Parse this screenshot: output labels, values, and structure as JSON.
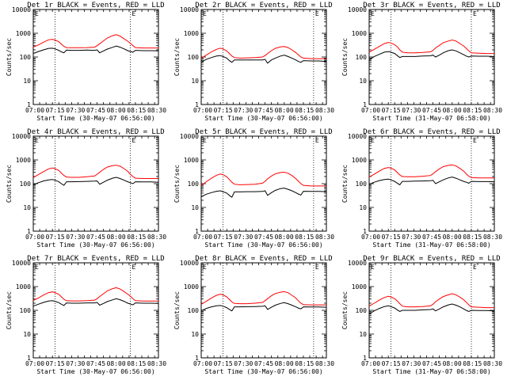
{
  "figure": {
    "ylabel": "Counts/sec",
    "y_ticks": [
      "1",
      "10",
      "100",
      "1000",
      "10000"
    ],
    "x_ticks": [
      "07:00",
      "07:15",
      "07:30",
      "07:45",
      "08:00",
      "08:15",
      "08:30"
    ],
    "corner_mark": "E",
    "colors": {
      "events": "#000000",
      "lld": "#ff0000",
      "axes": "#000000",
      "background": "#ffffff"
    }
  },
  "chart_data": [
    {
      "type": "line",
      "title": "Det 1r BLACK = Events, RED = LLD",
      "xlabel": "Start Time (30-May-07 06:56:00)",
      "ylabel": "Counts/sec",
      "xlim_minutes": [
        0,
        98
      ],
      "ylim": [
        1,
        10000
      ],
      "yscale": "log",
      "vlines_minutes": [
        17,
        76
      ],
      "x_minutes": [
        0,
        4,
        8,
        12,
        15,
        17,
        20,
        22,
        24,
        26,
        30,
        36,
        42,
        48,
        50,
        52,
        55,
        58,
        62,
        65,
        68,
        71,
        74,
        76,
        78,
        80,
        86,
        92,
        98
      ],
      "series": [
        {
          "name": "Events",
          "values": [
            140,
            170,
            200,
            230,
            235,
            220,
            190,
            165,
            150,
            195,
            190,
            190,
            195,
            190,
            200,
            150,
            180,
            215,
            255,
            290,
            260,
            220,
            185,
            170,
            160,
            190,
            185,
            185,
            180
          ]
        },
        {
          "name": "LLD",
          "values": [
            260,
            320,
            420,
            530,
            560,
            520,
            440,
            350,
            280,
            250,
            245,
            245,
            250,
            260,
            300,
            360,
            480,
            630,
            790,
            870,
            760,
            590,
            460,
            380,
            300,
            250,
            240,
            240,
            240
          ]
        }
      ]
    },
    {
      "type": "line",
      "title": "Det 2r BLACK = Events, RED = LLD",
      "xlabel": "Start Time (30-May-07 06:56:00)",
      "ylabel": "Counts/sec",
      "xlim_minutes": [
        0,
        98
      ],
      "ylim": [
        1,
        10000
      ],
      "yscale": "log",
      "vlines_minutes": [
        17,
        88
      ],
      "x_minutes": [
        0,
        4,
        8,
        12,
        15,
        17,
        20,
        22,
        24,
        26,
        30,
        36,
        42,
        48,
        50,
        52,
        55,
        58,
        62,
        65,
        68,
        71,
        74,
        76,
        78,
        80,
        86,
        92,
        98
      ],
      "series": [
        {
          "name": "Events",
          "values": [
            60,
            80,
            95,
            110,
            115,
            105,
            90,
            70,
            60,
            75,
            75,
            75,
            75,
            75,
            80,
            55,
            75,
            90,
            110,
            120,
            105,
            90,
            75,
            65,
            60,
            70,
            68,
            68,
            65
          ]
        },
        {
          "name": "LLD",
          "values": [
            90,
            120,
            165,
            210,
            235,
            220,
            180,
            140,
            110,
            95,
            90,
            92,
            95,
            100,
            115,
            140,
            185,
            230,
            265,
            275,
            250,
            200,
            155,
            125,
            100,
            90,
            85,
            85,
            85
          ]
        }
      ]
    },
    {
      "type": "line",
      "title": "Det 3r BLACK = Events, RED = LLD",
      "xlabel": "Start Time (31-May-07 06:58:00)",
      "ylabel": "Counts/sec",
      "xlim_minutes": [
        0,
        98
      ],
      "ylim": [
        1,
        10000
      ],
      "yscale": "log",
      "vlines_minutes": [
        17,
        80
      ],
      "x_minutes": [
        0,
        4,
        8,
        12,
        15,
        17,
        20,
        22,
        24,
        26,
        30,
        36,
        42,
        48,
        50,
        52,
        55,
        58,
        62,
        65,
        68,
        71,
        74,
        76,
        78,
        80,
        86,
        92,
        98
      ],
      "series": [
        {
          "name": "Events",
          "values": [
            75,
            105,
            130,
            160,
            170,
            160,
            140,
            115,
            95,
            105,
            105,
            105,
            110,
            112,
            120,
            100,
            120,
            150,
            185,
            200,
            180,
            150,
            125,
            110,
            100,
            110,
            108,
            108,
            105
          ]
        },
        {
          "name": "LLD",
          "values": [
            160,
            210,
            280,
            370,
            410,
            390,
            330,
            270,
            200,
            160,
            150,
            150,
            155,
            165,
            190,
            240,
            310,
            400,
            470,
            520,
            470,
            370,
            290,
            230,
            180,
            150,
            145,
            140,
            140
          ]
        }
      ]
    },
    {
      "type": "line",
      "title": "Det 4r BLACK = Events, RED = LLD",
      "xlabel": "Start Time (30-May-07 06:56:00)",
      "ylabel": "Counts/sec",
      "xlim_minutes": [
        0,
        98
      ],
      "ylim": [
        1,
        10000
      ],
      "yscale": "log",
      "vlines_minutes": [
        17,
        76
      ],
      "x_minutes": [
        0,
        4,
        8,
        12,
        15,
        17,
        20,
        22,
        24,
        26,
        30,
        36,
        42,
        48,
        50,
        52,
        55,
        58,
        62,
        65,
        68,
        71,
        74,
        76,
        78,
        80,
        86,
        92,
        98
      ],
      "series": [
        {
          "name": "Events",
          "values": [
            90,
            110,
            130,
            145,
            150,
            140,
            120,
            100,
            85,
            120,
            120,
            122,
            125,
            128,
            130,
            95,
            115,
            140,
            170,
            185,
            165,
            140,
            120,
            110,
            100,
            120,
            118,
            118,
            115
          ]
        },
        {
          "name": "LLD",
          "values": [
            180,
            240,
            320,
            420,
            460,
            430,
            360,
            280,
            220,
            190,
            185,
            185,
            195,
            210,
            250,
            300,
            400,
            500,
            570,
            600,
            540,
            430,
            330,
            250,
            200,
            170,
            165,
            165,
            165
          ]
        }
      ]
    },
    {
      "type": "line",
      "title": "Det 5r BLACK = Events, RED = LLD",
      "xlabel": "Start Time (30-May-07 06:56:00)",
      "ylabel": "Counts/sec",
      "xlim_minutes": [
        0,
        98
      ],
      "ylim": [
        1,
        10000
      ],
      "yscale": "log",
      "vlines_minutes": [
        17,
        88
      ],
      "x_minutes": [
        0,
        4,
        8,
        12,
        15,
        17,
        20,
        22,
        24,
        26,
        30,
        36,
        42,
        48,
        50,
        52,
        55,
        58,
        62,
        65,
        68,
        71,
        74,
        76,
        78,
        80,
        86,
        92,
        98
      ],
      "series": [
        {
          "name": "Events",
          "values": [
            28,
            36,
            42,
            48,
            50,
            46,
            40,
            32,
            27,
            45,
            45,
            46,
            46,
            47,
            50,
            32,
            42,
            52,
            62,
            65,
            58,
            50,
            42,
            37,
            33,
            48,
            47,
            47,
            46
          ]
        },
        {
          "name": "LLD",
          "values": [
            85,
            120,
            170,
            225,
            255,
            240,
            195,
            150,
            115,
            95,
            90,
            92,
            95,
            105,
            125,
            160,
            210,
            260,
            295,
            305,
            275,
            220,
            165,
            130,
            100,
            85,
            80,
            80,
            80
          ]
        }
      ]
    },
    {
      "type": "line",
      "title": "Det 6r BLACK = Events, RED = LLD",
      "xlabel": "Start Time (31-May-07 06:58:00)",
      "ylabel": "Counts/sec",
      "xlim_minutes": [
        0,
        98
      ],
      "ylim": [
        1,
        10000
      ],
      "yscale": "log",
      "vlines_minutes": [
        17,
        80
      ],
      "x_minutes": [
        0,
        4,
        8,
        12,
        15,
        17,
        20,
        22,
        24,
        26,
        30,
        36,
        42,
        48,
        50,
        52,
        55,
        58,
        62,
        65,
        68,
        71,
        74,
        76,
        78,
        80,
        86,
        92,
        98
      ],
      "series": [
        {
          "name": "Events",
          "values": [
            95,
            115,
            135,
            150,
            155,
            145,
            125,
            105,
            90,
            125,
            125,
            128,
            130,
            133,
            138,
            100,
            120,
            145,
            175,
            190,
            170,
            145,
            125,
            115,
            105,
            125,
            122,
            122,
            120
          ]
        },
        {
          "name": "LLD",
          "values": [
            190,
            250,
            340,
            440,
            480,
            450,
            380,
            295,
            230,
            200,
            195,
            195,
            205,
            220,
            260,
            320,
            420,
            520,
            590,
            620,
            560,
            440,
            340,
            260,
            205,
            180,
            175,
            175,
            175
          ]
        }
      ]
    },
    {
      "type": "line",
      "title": "Det 7r BLACK = Events, RED = LLD",
      "xlabel": "Start Time (30-May-07 06:56:00)",
      "ylabel": "Counts/sec",
      "xlim_minutes": [
        0,
        98
      ],
      "ylim": [
        1,
        10000
      ],
      "yscale": "log",
      "vlines_minutes": [
        17,
        76
      ],
      "x_minutes": [
        0,
        4,
        8,
        12,
        15,
        17,
        20,
        22,
        24,
        26,
        30,
        36,
        42,
        48,
        50,
        52,
        55,
        58,
        62,
        65,
        68,
        71,
        74,
        76,
        78,
        80,
        86,
        92,
        98
      ],
      "series": [
        {
          "name": "Events",
          "values": [
            150,
            180,
            215,
            245,
            255,
            240,
            210,
            180,
            160,
            205,
            200,
            200,
            205,
            205,
            215,
            165,
            195,
            235,
            275,
            310,
            280,
            240,
            200,
            185,
            170,
            205,
            200,
            200,
            195
          ]
        },
        {
          "name": "LLD",
          "values": [
            260,
            330,
            440,
            560,
            600,
            560,
            470,
            370,
            290,
            255,
            250,
            250,
            255,
            270,
            310,
            380,
            500,
            660,
            820,
            900,
            790,
            620,
            480,
            390,
            310,
            255,
            245,
            245,
            245
          ]
        }
      ]
    },
    {
      "type": "line",
      "title": "Det 8r BLACK = Events, RED = LLD",
      "xlabel": "Start Time (30-May-07 06:56:00)",
      "ylabel": "Counts/sec",
      "xlim_minutes": [
        0,
        98
      ],
      "ylim": [
        1,
        10000
      ],
      "yscale": "log",
      "vlines_minutes": [
        17,
        88
      ],
      "x_minutes": [
        0,
        4,
        8,
        12,
        15,
        17,
        20,
        22,
        24,
        26,
        30,
        36,
        42,
        48,
        50,
        52,
        55,
        58,
        62,
        65,
        68,
        71,
        74,
        76,
        78,
        80,
        86,
        92,
        98
      ],
      "series": [
        {
          "name": "Events",
          "values": [
            95,
            120,
            140,
            155,
            160,
            150,
            130,
            110,
            95,
            140,
            140,
            142,
            145,
            148,
            155,
            110,
            135,
            165,
            195,
            210,
            190,
            165,
            140,
            125,
            115,
            140,
            138,
            138,
            135
          ]
        },
        {
          "name": "LLD",
          "values": [
            180,
            240,
            330,
            430,
            480,
            450,
            370,
            290,
            225,
            195,
            190,
            190,
            200,
            215,
            255,
            310,
            410,
            510,
            580,
            610,
            550,
            430,
            330,
            255,
            200,
            175,
            170,
            170,
            170
          ]
        }
      ]
    },
    {
      "type": "line",
      "title": "Det 9r BLACK = Events, RED = LLD",
      "xlabel": "Start Time (31-May-07 06:58:00)",
      "ylabel": "Counts/sec",
      "xlim_minutes": [
        0,
        98
      ],
      "ylim": [
        1,
        10000
      ],
      "yscale": "log",
      "vlines_minutes": [
        17,
        80
      ],
      "x_minutes": [
        0,
        4,
        8,
        12,
        15,
        17,
        20,
        22,
        24,
        26,
        30,
        36,
        42,
        48,
        50,
        52,
        55,
        58,
        62,
        65,
        68,
        71,
        74,
        76,
        78,
        80,
        86,
        92,
        98
      ],
      "series": [
        {
          "name": "Events",
          "values": [
            70,
            95,
            120,
            145,
            155,
            145,
            125,
            105,
            90,
            100,
            100,
            100,
            105,
            108,
            115,
            95,
            115,
            140,
            170,
            185,
            165,
            140,
            115,
            100,
            90,
            100,
            98,
            98,
            95
          ]
        },
        {
          "name": "LLD",
          "values": [
            150,
            200,
            270,
            350,
            390,
            370,
            310,
            250,
            190,
            150,
            140,
            140,
            145,
            155,
            180,
            230,
            300,
            380,
            450,
            500,
            450,
            360,
            280,
            220,
            170,
            140,
            135,
            130,
            130
          ]
        }
      ]
    }
  ]
}
